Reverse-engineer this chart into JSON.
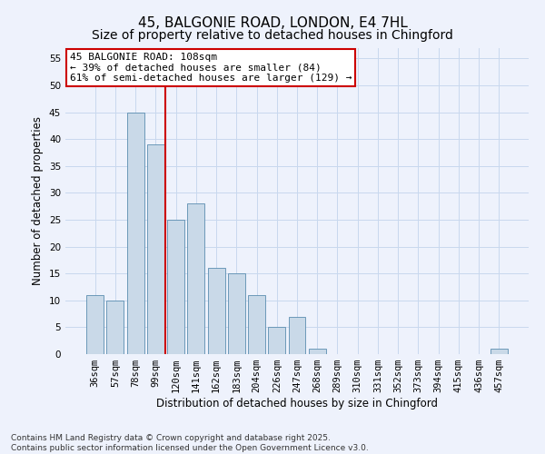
{
  "title": "45, BALGONIE ROAD, LONDON, E4 7HL",
  "subtitle": "Size of property relative to detached houses in Chingford",
  "xlabel": "Distribution of detached houses by size in Chingford",
  "ylabel": "Number of detached properties",
  "categories": [
    "36sqm",
    "57sqm",
    "78sqm",
    "99sqm",
    "120sqm",
    "141sqm",
    "162sqm",
    "183sqm",
    "204sqm",
    "226sqm",
    "247sqm",
    "268sqm",
    "289sqm",
    "310sqm",
    "331sqm",
    "352sqm",
    "373sqm",
    "394sqm",
    "415sqm",
    "436sqm",
    "457sqm"
  ],
  "values": [
    11,
    10,
    45,
    39,
    25,
    28,
    16,
    15,
    11,
    5,
    7,
    1,
    0,
    0,
    0,
    0,
    0,
    0,
    0,
    0,
    1
  ],
  "bar_color": "#c9d9e8",
  "bar_edge_color": "#5b8db0",
  "grid_color": "#c8d8ee",
  "background_color": "#eef2fc",
  "vline_x": 3.5,
  "vline_color": "#cc0000",
  "annotation_text": "45 BALGONIE ROAD: 108sqm\n← 39% of detached houses are smaller (84)\n61% of semi-detached houses are larger (129) →",
  "annotation_box_color": "#ffffff",
  "annotation_edge_color": "#cc0000",
  "ylim": [
    0,
    57
  ],
  "yticks": [
    0,
    5,
    10,
    15,
    20,
    25,
    30,
    35,
    40,
    45,
    50,
    55
  ],
  "footer": "Contains HM Land Registry data © Crown copyright and database right 2025.\nContains public sector information licensed under the Open Government Licence v3.0.",
  "title_fontsize": 11,
  "subtitle_fontsize": 10,
  "axis_label_fontsize": 8.5,
  "tick_fontsize": 7.5,
  "annotation_fontsize": 8,
  "footer_fontsize": 6.5
}
